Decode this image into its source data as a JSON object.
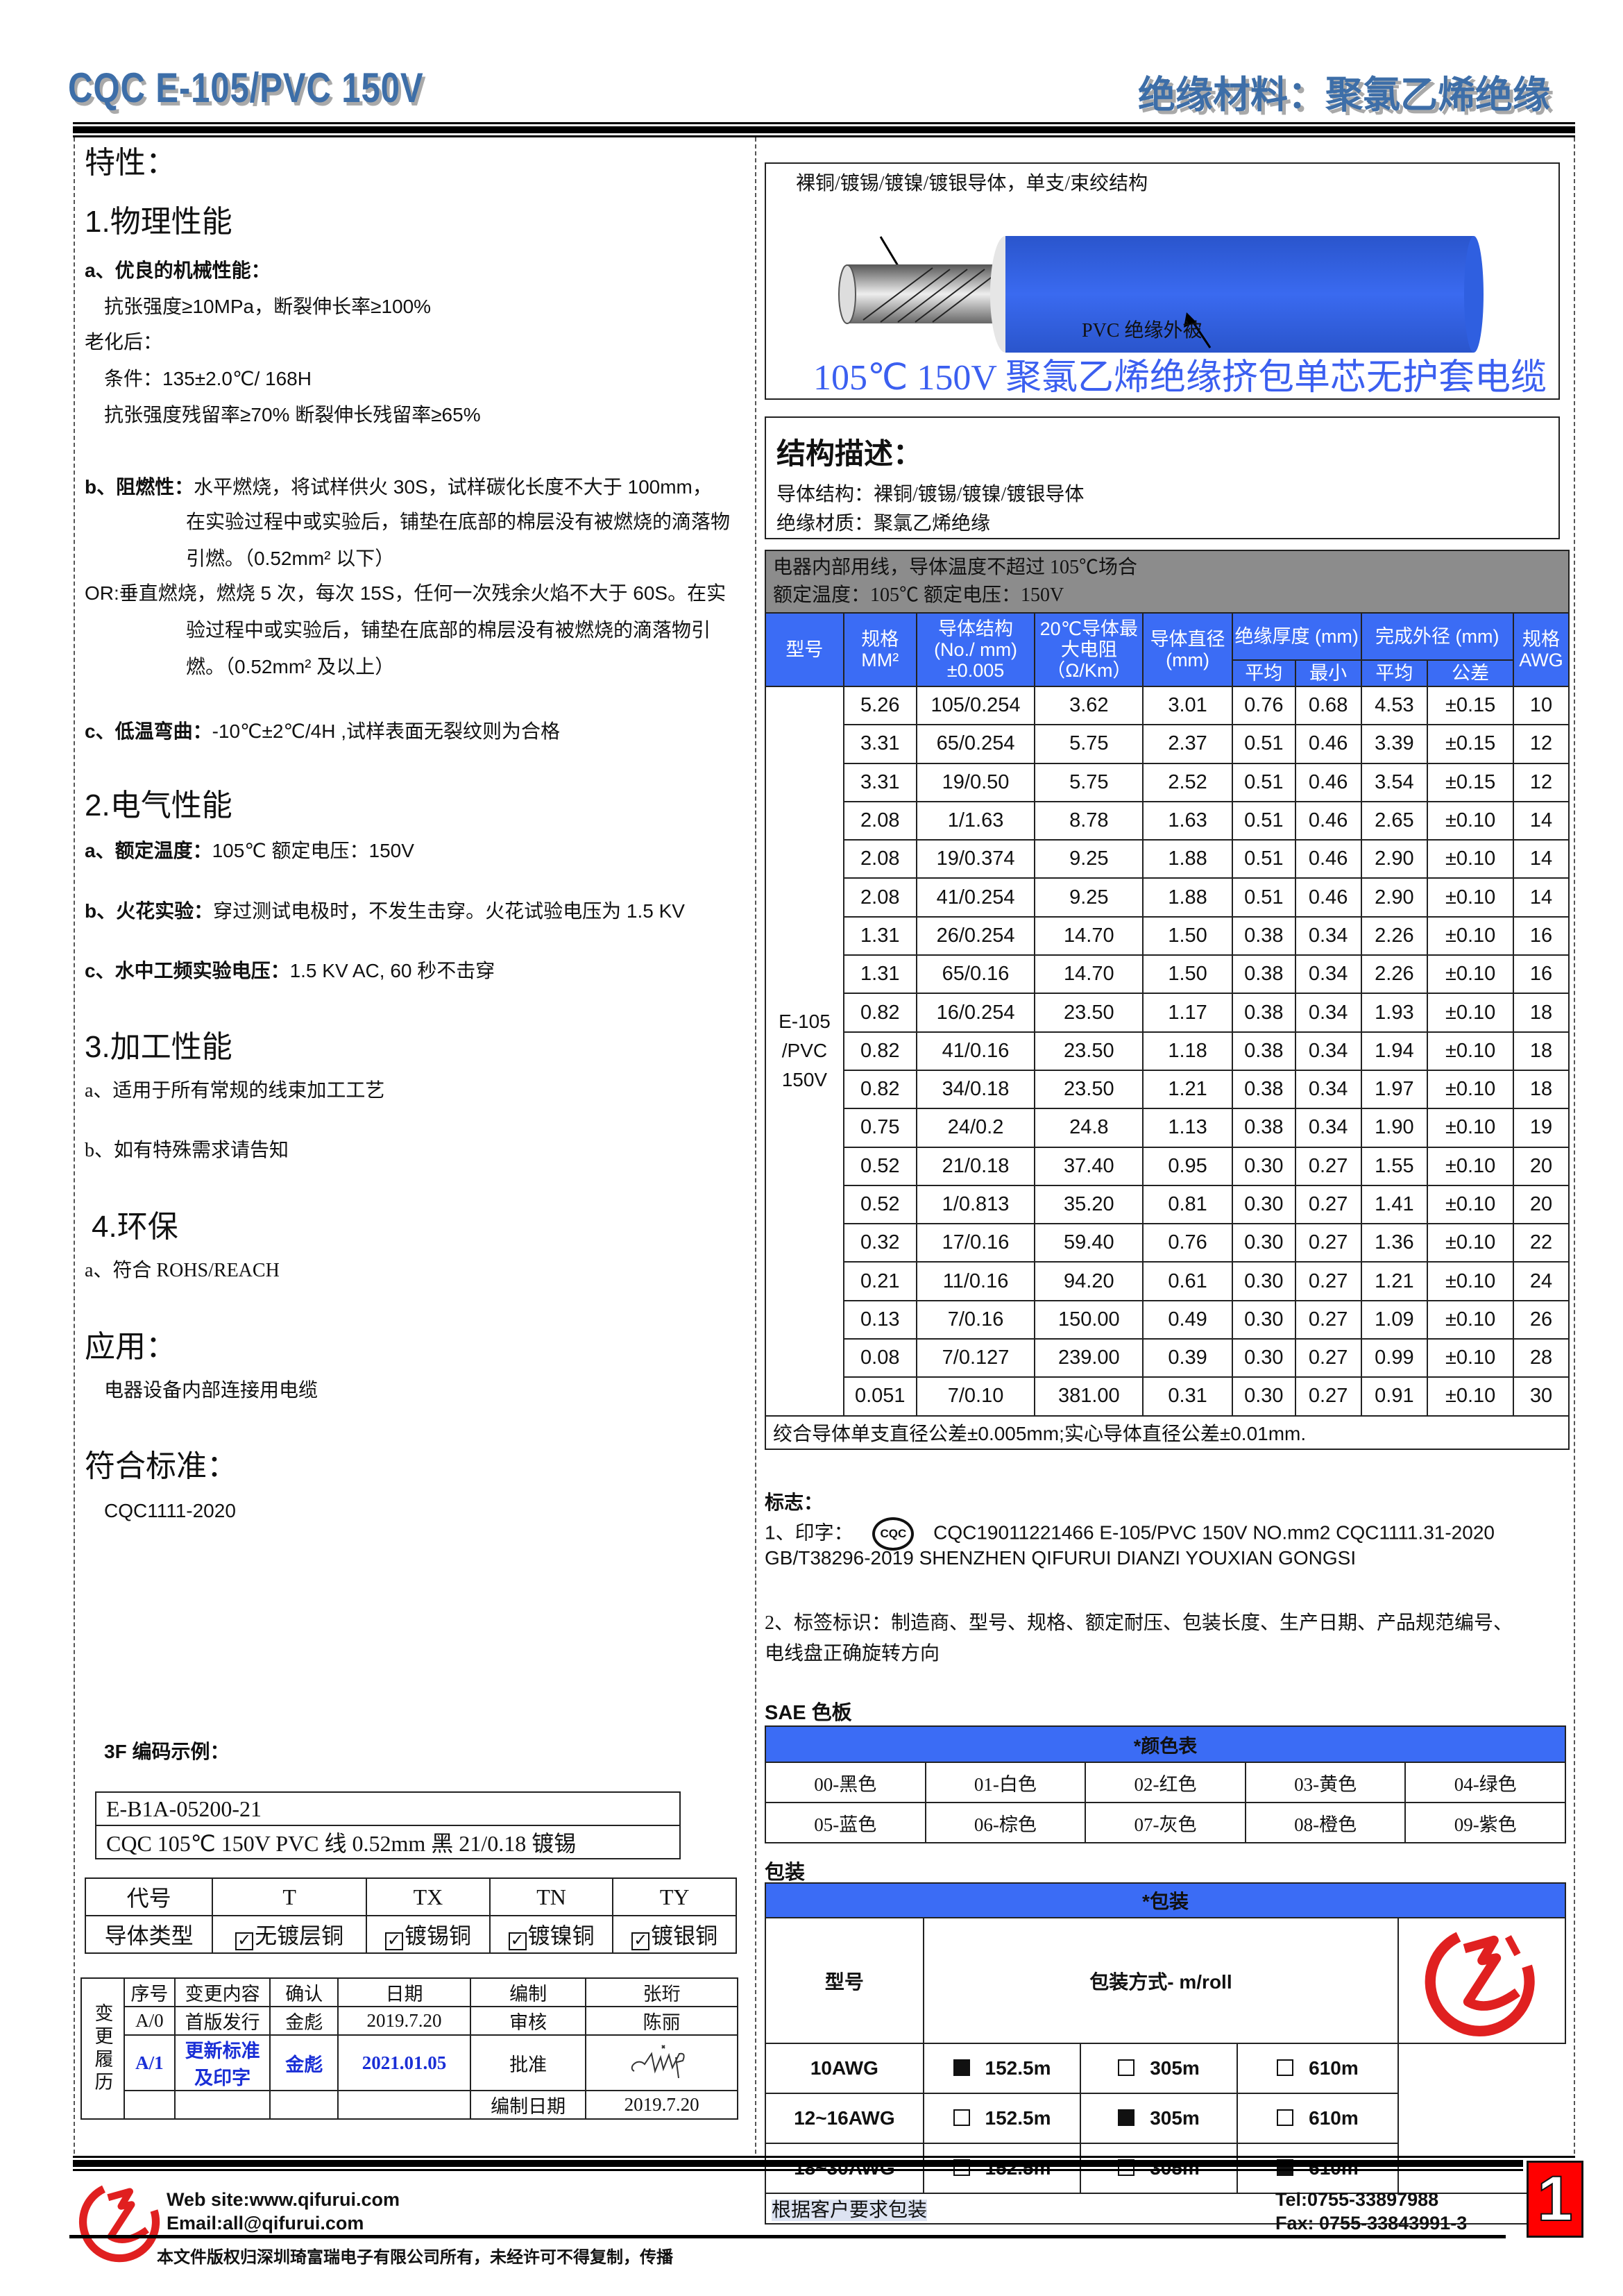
{
  "header": {
    "title": "CQC E-105/PVC 150V",
    "material": "绝缘材料：聚氯乙烯绝缘"
  },
  "left": {
    "features_title": "特性：",
    "physical": {
      "title": "1.物理性能",
      "a_title": "a、优良的机械性能：",
      "a_line1": "抗张强度≥10MPa，断裂伸长率≥100%",
      "aging": "老化后：",
      "condition": "条件：135±2.0℃/ 168H",
      "retention": "抗张强度残留率≥70%  断裂伸长残留率≥65%",
      "b_label": "b、阻燃性：",
      "b_line1": "水平燃烧，将试样供火 30S，试样碳化长度不大于 100mm，",
      "b_line2": "在实验过程中或实验后，铺垫在底部的棉层没有被燃烧的滴落物",
      "b_line3": "引燃。（0.52mm² 以下）",
      "or_line1": "OR:垂直燃烧，燃烧 5 次，每次 15S，任何一次残余火焰不大于 60S。在实",
      "or_line2": "验过程中或实验后，铺垫在底部的棉层没有被燃烧的滴落物引",
      "or_line3": "燃。（0.52mm² 及以上）",
      "c_label": "c、低温弯曲：",
      "c_text": "-10℃±2℃/4H ,试样表面无裂纹则为合格"
    },
    "electrical": {
      "title": "2.电气性能",
      "a_label": "a、额定温度：",
      "a_text": "105℃    额定电压：150V",
      "b_label": "b、火花实验：",
      "b_text": "穿过测试电极时，不发生击穿。火花试验电压为 1.5 KV",
      "c_label": "c、水中工频实验电压：",
      "c_text": "1.5 KV AC, 60 秒不击穿"
    },
    "processing": {
      "title": "3.加工性能",
      "a": "a、适用于所有常规的线束加工工艺",
      "b": "b、如有特殊需求请告知"
    },
    "environment": {
      "title": "4.环保",
      "a": "a、符合 ROHS/REACH"
    },
    "application": {
      "title": "应用：",
      "text": "电器设备内部连接用电缆"
    },
    "standard": {
      "title": "符合标准：",
      "text": "CQC1111-2020"
    },
    "code_example": {
      "title": "3F 编码示例：",
      "code": "E-B1A-05200-21",
      "desc": "CQC 105℃  150V PVC 线  0.52mm  黑  21/0.18 镀锡"
    },
    "conductor_types": {
      "header": [
        "代号",
        "T",
        "TX",
        "TN",
        "TY"
      ],
      "row_label": "导体类型",
      "types": [
        "无镀层铜",
        "镀锡铜",
        "镀镍铜",
        "镀银铜"
      ],
      "checked": [
        true,
        true,
        true,
        true
      ]
    },
    "revision": {
      "side_label": "变更履历",
      "head": [
        "序号",
        "变更内容",
        "确认",
        "日期",
        "编制",
        "张珩"
      ],
      "row1": [
        "A/0",
        "首版发行",
        "金彪",
        "2019.7.20",
        "审核",
        "陈丽"
      ],
      "row2": [
        "A/1",
        "更新标准及印字",
        "金彪",
        "2021.01.05",
        "批准"
      ],
      "row3_label": "编制日期",
      "row3_date": "2019.7.20"
    }
  },
  "right": {
    "cable": {
      "conductor_label": "裸铜/镀锡/镀镍/镀银导体，单支/束绞结构",
      "insulation_label": "PVC  绝缘外被",
      "caption": "105℃  150V 聚氯乙烯绝缘挤包单芯无护套电缆",
      "insulation_color": "#2f5fe0"
    },
    "structure": {
      "title": "结构描述：",
      "conductor": "导体结构：裸铜/镀锡/镀镍/镀银导体",
      "insulation": "绝缘材质：聚氯乙烯绝缘"
    },
    "spec": {
      "usage": "电器内部用线，导体温度不超过 105℃场合",
      "rating": "额定温度：105℃  额定电压：150V",
      "headers": {
        "model": "型号",
        "size": "规格 MM²",
        "structure": "导体结构 (No./ mm) ±0.005",
        "resistance": "20℃导体最大电阻（Ω/Km）",
        "diameter": "导体直径(mm)",
        "ins_thickness": "绝缘厚度 (mm)",
        "outer_dia": "完成外径 (mm)",
        "awg": "规格 AWG",
        "avg": "平均",
        "min": "最小",
        "avg2": "平均",
        "tol": "公差"
      },
      "model": "E-105 /PVC 150V",
      "rows": [
        [
          "5.26",
          "105/0.254",
          "3.62",
          "3.01",
          "0.76",
          "0.68",
          "4.53",
          "±0.15",
          "10"
        ],
        [
          "3.31",
          "65/0.254",
          "5.75",
          "2.37",
          "0.51",
          "0.46",
          "3.39",
          "±0.15",
          "12"
        ],
        [
          "3.31",
          "19/0.50",
          "5.75",
          "2.52",
          "0.51",
          "0.46",
          "3.54",
          "±0.15",
          "12"
        ],
        [
          "2.08",
          "1/1.63",
          "8.78",
          "1.63",
          "0.51",
          "0.46",
          "2.65",
          "±0.10",
          "14"
        ],
        [
          "2.08",
          "19/0.374",
          "9.25",
          "1.88",
          "0.51",
          "0.46",
          "2.90",
          "±0.10",
          "14"
        ],
        [
          "2.08",
          "41/0.254",
          "9.25",
          "1.88",
          "0.51",
          "0.46",
          "2.90",
          "±0.10",
          "14"
        ],
        [
          "1.31",
          "26/0.254",
          "14.70",
          "1.50",
          "0.38",
          "0.34",
          "2.26",
          "±0.10",
          "16"
        ],
        [
          "1.31",
          "65/0.16",
          "14.70",
          "1.50",
          "0.38",
          "0.34",
          "2.26",
          "±0.10",
          "16"
        ],
        [
          "0.82",
          "16/0.254",
          "23.50",
          "1.17",
          "0.38",
          "0.34",
          "1.93",
          "±0.10",
          "18"
        ],
        [
          "0.82",
          "41/0.16",
          "23.50",
          "1.18",
          "0.38",
          "0.34",
          "1.94",
          "±0.10",
          "18"
        ],
        [
          "0.82",
          "34/0.18",
          "23.50",
          "1.21",
          "0.38",
          "0.34",
          "1.97",
          "±0.10",
          "18"
        ],
        [
          "0.75",
          "24/0.2",
          "24.8",
          "1.13",
          "0.38",
          "0.34",
          "1.90",
          "±0.10",
          "19"
        ],
        [
          "0.52",
          "21/0.18",
          "37.40",
          "0.95",
          "0.30",
          "0.27",
          "1.55",
          "±0.10",
          "20"
        ],
        [
          "0.52",
          "1/0.813",
          "35.20",
          "0.81",
          "0.30",
          "0.27",
          "1.41",
          "±0.10",
          "20"
        ],
        [
          "0.32",
          "17/0.16",
          "59.40",
          "0.76",
          "0.30",
          "0.27",
          "1.36",
          "±0.10",
          "22"
        ],
        [
          "0.21",
          "11/0.16",
          "94.20",
          "0.61",
          "0.30",
          "0.27",
          "1.21",
          "±0.10",
          "24"
        ],
        [
          "0.13",
          "7/0.16",
          "150.00",
          "0.49",
          "0.30",
          "0.27",
          "1.09",
          "±0.10",
          "26"
        ],
        [
          "0.08",
          "7/0.127",
          "239.00",
          "0.39",
          "0.30",
          "0.27",
          "0.99",
          "±0.10",
          "28"
        ],
        [
          "0.051",
          "7/0.10",
          "381.00",
          "0.31",
          "0.30",
          "0.27",
          "0.91",
          "±0.10",
          "30"
        ]
      ],
      "note": "绞合导体单支直径公差±0.005mm;实心导体直径公差±0.01mm."
    },
    "marking": {
      "title": "标志：",
      "print_label": "1、印字：",
      "cqc_logo": "CQC",
      "print_text1": "CQC19011221466  E-105/PVC   150V   NO.mm2   CQC1111.31-2020",
      "print_text2": "GB/T38296-2019 SHENZHEN QIFURUI DIANZI YOUXIAN GONGSI",
      "label_line1": "2、标签标识：制造商、型号、规格、额定耐压、包装长度、生产日期、产品规范编号、",
      "label_line2": "电线盘正确旋转方向"
    },
    "colors": {
      "title": "SAE 色板",
      "table_title": "*颜色表",
      "items": [
        "00-黑色",
        "01-白色",
        "02-红色",
        "03-黄色",
        "04-绿色",
        "05-蓝色",
        "06-棕色",
        "07-灰色",
        "08-橙色",
        "09-紫色"
      ]
    },
    "packaging": {
      "title": "包装",
      "table_title": "*包装",
      "col_model": "型号",
      "col_method": "包装方式- m/roll",
      "options": [
        "152.5m",
        "305m",
        "610m"
      ],
      "rows": [
        {
          "model": "10AWG",
          "selected": [
            true,
            false,
            false
          ]
        },
        {
          "model": "12~16AWG",
          "selected": [
            false,
            true,
            false
          ]
        },
        {
          "model": "18~30AWG",
          "selected": [
            false,
            false,
            true
          ]
        }
      ],
      "note": "根据客户要求包装"
    }
  },
  "footer": {
    "website": "Web site:www.qifurui.com",
    "email": "Email:all@qifurui.com",
    "tel": "Tel:0755-33897988",
    "fax": "Fax: 0755-33843991-3",
    "copyright": "本文件版权归深圳琦富瑞电子有限公司所有，未经许可不得复制，传播",
    "page_number": "1",
    "brand_color": "#e02020"
  }
}
